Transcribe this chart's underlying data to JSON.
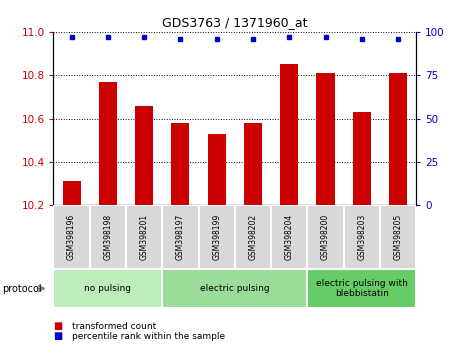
{
  "title": "GDS3763 / 1371960_at",
  "samples": [
    "GSM398196",
    "GSM398198",
    "GSM398201",
    "GSM398197",
    "GSM398199",
    "GSM398202",
    "GSM398204",
    "GSM398200",
    "GSM398203",
    "GSM398205"
  ],
  "transformed_counts": [
    10.31,
    10.77,
    10.66,
    10.58,
    10.53,
    10.58,
    10.85,
    10.81,
    10.63,
    10.81
  ],
  "percentile_ranks": [
    97,
    97,
    97,
    96,
    96,
    96,
    97,
    97,
    96,
    96
  ],
  "ylim_left": [
    10.2,
    11.0
  ],
  "ylim_right": [
    0,
    100
  ],
  "yticks_left": [
    10.2,
    10.4,
    10.6,
    10.8,
    11.0
  ],
  "yticks_right": [
    0,
    25,
    50,
    75,
    100
  ],
  "bar_color": "#cc0000",
  "dot_color": "#0000cc",
  "groups": [
    {
      "label": "no pulsing",
      "start": 0,
      "end": 3,
      "color": "#bbeebb"
    },
    {
      "label": "electric pulsing",
      "start": 3,
      "end": 7,
      "color": "#99dd99"
    },
    {
      "label": "electric pulsing with\nblebbistatin",
      "start": 7,
      "end": 10,
      "color": "#66cc66"
    }
  ],
  "legend_bar_label": "transformed count",
  "legend_dot_label": "percentile rank within the sample",
  "protocol_label": "protocol",
  "tick_label_color_left": "#cc0000",
  "tick_label_color_right": "#0000cc",
  "sample_box_color": "#d8d8d8",
  "grid_linestyle": "dotted",
  "bar_width": 0.5,
  "title_fontsize": 9
}
